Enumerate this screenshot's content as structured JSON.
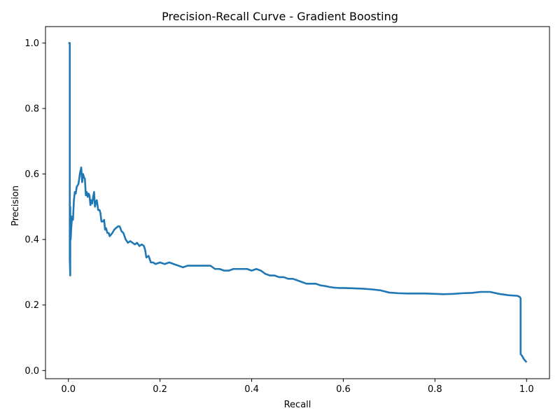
{
  "chart_data": {
    "type": "line",
    "title": "Precision-Recall Curve - Gradient Boosting",
    "xlabel": "Recall",
    "ylabel": "Precision",
    "xlim": [
      -0.05,
      1.05
    ],
    "ylim": [
      -0.025,
      1.05
    ],
    "x_ticks": [
      0.0,
      0.2,
      0.4,
      0.6,
      0.8,
      1.0
    ],
    "x_tick_labels": [
      "0.0",
      "0.2",
      "0.4",
      "0.6",
      "0.8",
      "1.0"
    ],
    "y_ticks": [
      0.0,
      0.2,
      0.4,
      0.6,
      0.8,
      1.0
    ],
    "y_tick_labels": [
      "0.0",
      "0.2",
      "0.4",
      "0.6",
      "0.8",
      "1.0"
    ],
    "grid": false,
    "legend": "none",
    "series": [
      {
        "color": "#1f77b4",
        "x": [
          0.0,
          0.003,
          0.003,
          0.004,
          0.004,
          0.005,
          0.006,
          0.008,
          0.01,
          0.012,
          0.014,
          0.016,
          0.018,
          0.02,
          0.022,
          0.025,
          0.028,
          0.03,
          0.032,
          0.034,
          0.036,
          0.038,
          0.04,
          0.042,
          0.044,
          0.046,
          0.048,
          0.05,
          0.052,
          0.054,
          0.056,
          0.058,
          0.06,
          0.062,
          0.065,
          0.068,
          0.07,
          0.072,
          0.075,
          0.078,
          0.08,
          0.082,
          0.085,
          0.088,
          0.09,
          0.093,
          0.096,
          0.1,
          0.104,
          0.108,
          0.112,
          0.116,
          0.12,
          0.125,
          0.13,
          0.135,
          0.14,
          0.145,
          0.15,
          0.155,
          0.16,
          0.165,
          0.168,
          0.17,
          0.175,
          0.18,
          0.185,
          0.19,
          0.2,
          0.21,
          0.22,
          0.23,
          0.24,
          0.25,
          0.26,
          0.27,
          0.28,
          0.29,
          0.3,
          0.31,
          0.32,
          0.33,
          0.34,
          0.35,
          0.36,
          0.37,
          0.38,
          0.39,
          0.4,
          0.41,
          0.42,
          0.43,
          0.44,
          0.45,
          0.46,
          0.47,
          0.48,
          0.49,
          0.5,
          0.51,
          0.52,
          0.53,
          0.54,
          0.55,
          0.56,
          0.57,
          0.58,
          0.59,
          0.6,
          0.62,
          0.64,
          0.66,
          0.68,
          0.7,
          0.72,
          0.74,
          0.76,
          0.78,
          0.8,
          0.82,
          0.84,
          0.86,
          0.88,
          0.9,
          0.92,
          0.94,
          0.96,
          0.98,
          0.985,
          0.987,
          0.987,
          0.99,
          0.994,
          0.997,
          1.0
        ],
        "y": [
          1.0,
          1.0,
          0.34,
          0.29,
          0.5,
          0.4,
          0.43,
          0.47,
          0.46,
          0.52,
          0.545,
          0.54,
          0.56,
          0.565,
          0.57,
          0.6,
          0.62,
          0.575,
          0.6,
          0.59,
          0.585,
          0.535,
          0.545,
          0.53,
          0.54,
          0.535,
          0.505,
          0.52,
          0.51,
          0.53,
          0.545,
          0.5,
          0.515,
          0.52,
          0.49,
          0.49,
          0.48,
          0.455,
          0.455,
          0.46,
          0.43,
          0.435,
          0.42,
          0.42,
          0.41,
          0.415,
          0.42,
          0.43,
          0.435,
          0.44,
          0.44,
          0.425,
          0.42,
          0.4,
          0.39,
          0.395,
          0.39,
          0.385,
          0.39,
          0.38,
          0.385,
          0.38,
          0.365,
          0.345,
          0.35,
          0.33,
          0.33,
          0.325,
          0.33,
          0.325,
          0.33,
          0.325,
          0.32,
          0.315,
          0.32,
          0.32,
          0.32,
          0.32,
          0.32,
          0.32,
          0.31,
          0.31,
          0.305,
          0.305,
          0.31,
          0.31,
          0.31,
          0.31,
          0.305,
          0.31,
          0.305,
          0.295,
          0.29,
          0.29,
          0.285,
          0.285,
          0.28,
          0.28,
          0.275,
          0.27,
          0.265,
          0.265,
          0.265,
          0.26,
          0.258,
          0.255,
          0.253,
          0.252,
          0.252,
          0.251,
          0.25,
          0.248,
          0.245,
          0.238,
          0.236,
          0.235,
          0.235,
          0.235,
          0.234,
          0.233,
          0.234,
          0.236,
          0.237,
          0.24,
          0.24,
          0.234,
          0.23,
          0.228,
          0.225,
          0.22,
          0.05,
          0.045,
          0.035,
          0.03,
          0.025
        ]
      }
    ]
  }
}
